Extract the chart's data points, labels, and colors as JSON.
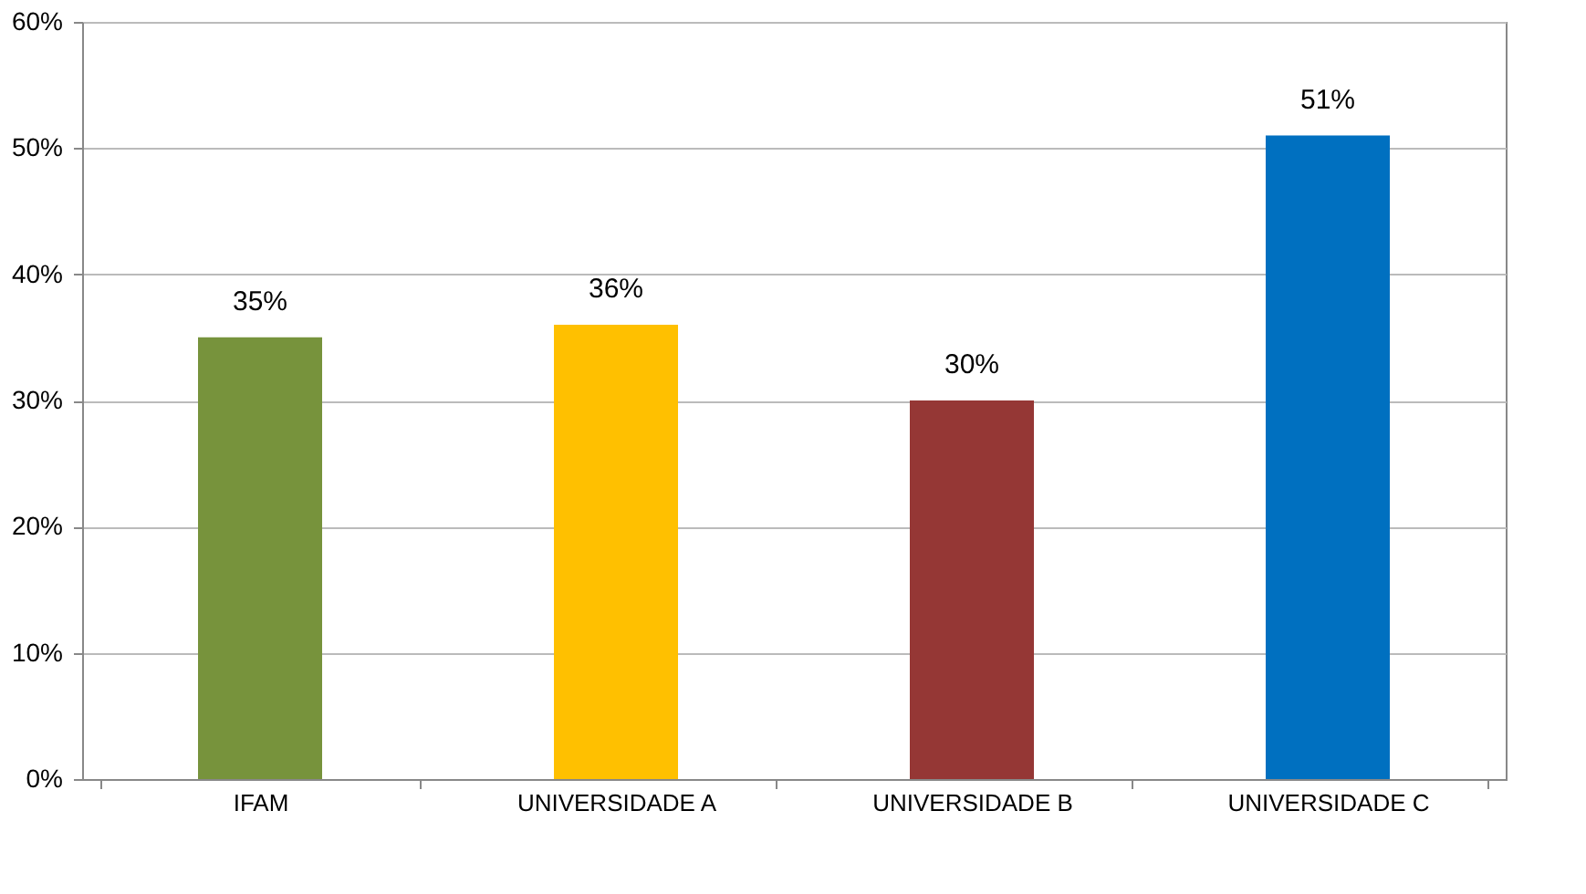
{
  "chart_data": {
    "type": "bar",
    "categories": [
      "IFAM",
      "UNIVERSIDADE A",
      "UNIVERSIDADE B",
      "UNIVERSIDADE C"
    ],
    "values": [
      35,
      36,
      30,
      51
    ],
    "colors": [
      "#77933c",
      "#ffc000",
      "#953735",
      "#0070c0"
    ],
    "value_labels": [
      "35%",
      "36%",
      "30%",
      "51%"
    ],
    "ylim": [
      0,
      60
    ],
    "yticks": [
      {
        "value": 0,
        "label": "0%"
      },
      {
        "value": 10,
        "label": "10%"
      },
      {
        "value": 20,
        "label": "20%"
      },
      {
        "value": 30,
        "label": "30%"
      },
      {
        "value": 40,
        "label": "40%"
      },
      {
        "value": 50,
        "label": "50%"
      },
      {
        "value": 60,
        "label": "60%"
      }
    ],
    "grid": "y"
  }
}
